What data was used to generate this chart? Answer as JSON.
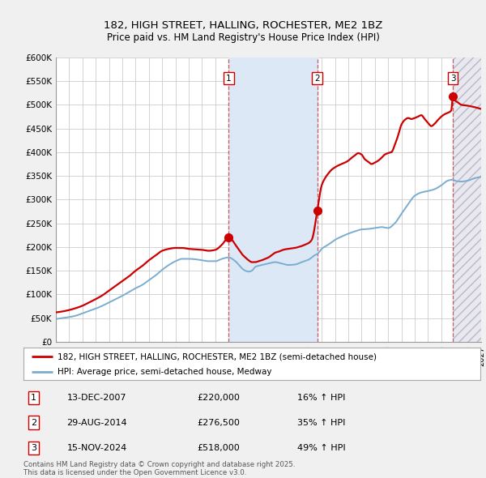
{
  "title_line1": "182, HIGH STREET, HALLING, ROCHESTER, ME2 1BZ",
  "title_line2": "Price paid vs. HM Land Registry's House Price Index (HPI)",
  "ylabel_ticks": [
    "£0",
    "£50K",
    "£100K",
    "£150K",
    "£200K",
    "£250K",
    "£300K",
    "£350K",
    "£400K",
    "£450K",
    "£500K",
    "£550K",
    "£600K"
  ],
  "ytick_values": [
    0,
    50000,
    100000,
    150000,
    200000,
    250000,
    300000,
    350000,
    400000,
    450000,
    500000,
    550000,
    600000
  ],
  "xmin": 1995.0,
  "xmax": 2027.0,
  "ymin": 0,
  "ymax": 600000,
  "sale_color": "#cc0000",
  "hpi_color": "#7aadcf",
  "sale_label": "182, HIGH STREET, HALLING, ROCHESTER, ME2 1BZ (semi-detached house)",
  "hpi_label": "HPI: Average price, semi-detached house, Medway",
  "event1_x": 2008.0,
  "event2_x": 2014.67,
  "event3_x": 2024.88,
  "events": [
    {
      "num": 1,
      "date": "13-DEC-2007",
      "price": 220000,
      "pct": "16%",
      "x": 2008.0
    },
    {
      "num": 2,
      "date": "29-AUG-2014",
      "price": 276500,
      "pct": "35%",
      "x": 2014.67
    },
    {
      "num": 3,
      "date": "15-NOV-2024",
      "price": 518000,
      "pct": "49%",
      "x": 2024.88
    }
  ],
  "copyright_text": "Contains HM Land Registry data © Crown copyright and database right 2025.\nThis data is licensed under the Open Government Licence v3.0.",
  "background_color": "#f0f0f0",
  "plot_bg_color": "#ffffff",
  "grid_color": "#cccccc",
  "span_color": "#dce8f5",
  "hatch_color": "#c8c8d8"
}
